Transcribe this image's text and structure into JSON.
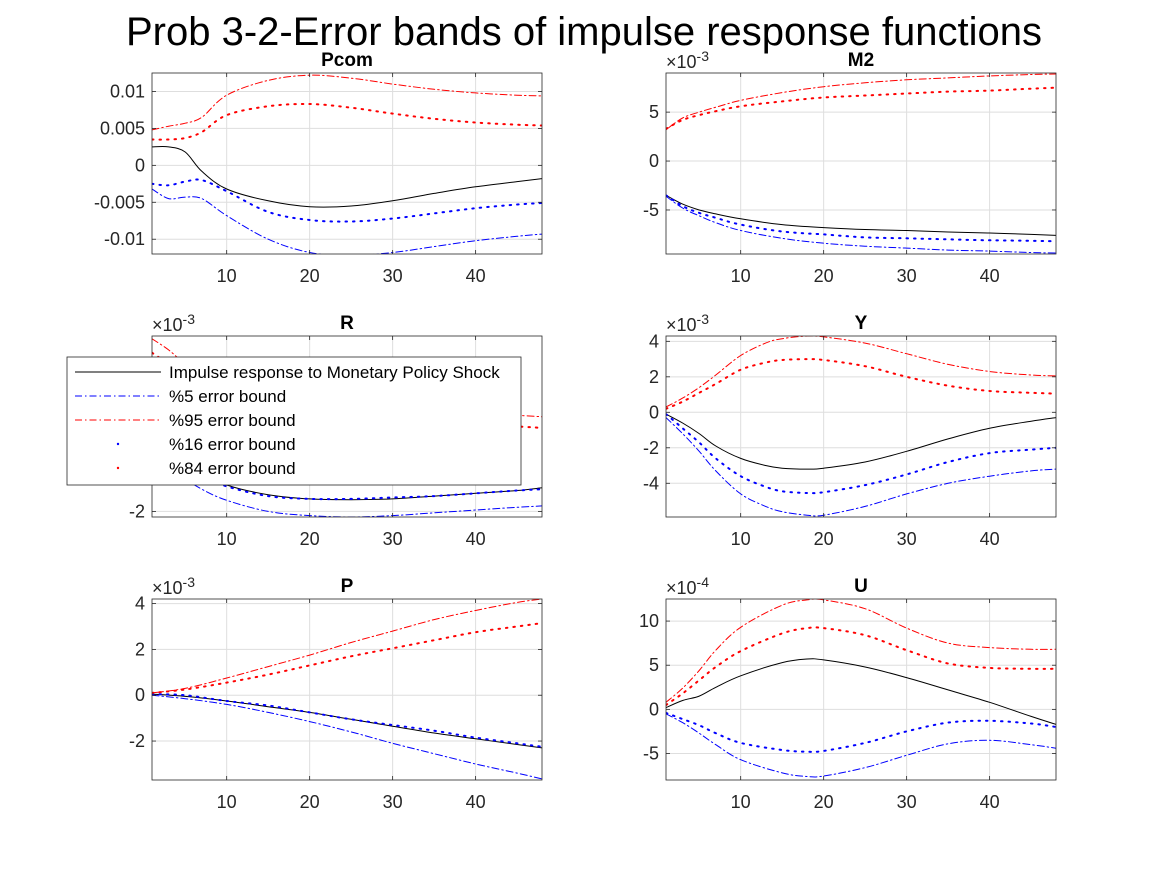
{
  "figure_title": "Prob 3-2-Error bands of impulse response functions",
  "legend": {
    "entries": [
      {
        "label": "Impulse response to Monetary Policy Shock",
        "style": "solid",
        "color": "#000000"
      },
      {
        "label": "%5 error bound",
        "style": "dashdot",
        "color": "#0000ff"
      },
      {
        "label": "%95 error bound",
        "style": "dashdot",
        "color": "#ff0000"
      },
      {
        "label": "%16 error bound",
        "style": "dotted",
        "color": "#0000ff"
      },
      {
        "label": "%84 error bound",
        "style": "dotted",
        "color": "#ff0000"
      }
    ]
  },
  "chart_data": [
    {
      "type": "line",
      "title": "Pcom",
      "exponent": null,
      "xlim": [
        1,
        48
      ],
      "ylim": [
        -0.012,
        0.0125
      ],
      "xticks": [
        10,
        20,
        30,
        40
      ],
      "xtick_labels": [
        "10",
        "20",
        "30",
        "40"
      ],
      "yticks": [
        -0.01,
        -0.005,
        0,
        0.005,
        0.01
      ],
      "ytick_labels": [
        "-0.01",
        "-0.005",
        "0",
        "0.005",
        "0.01"
      ],
      "x": [
        1,
        3,
        5,
        7,
        10,
        15,
        20,
        25,
        30,
        35,
        40,
        45,
        48
      ],
      "series": [
        {
          "name": "Impulse response to Monetary Policy Shock",
          "values": [
            0.0025,
            0.0025,
            0.0018,
            -0.0008,
            -0.0032,
            -0.0048,
            -0.0056,
            -0.0055,
            -0.0048,
            -0.0038,
            -0.0029,
            -0.0022,
            -0.0018
          ]
        },
        {
          "name": "%5 error bound",
          "values": [
            -0.0032,
            -0.0045,
            -0.0043,
            -0.0045,
            -0.0068,
            -0.01,
            -0.0118,
            -0.0122,
            -0.0118,
            -0.011,
            -0.0102,
            -0.0096,
            -0.0093
          ]
        },
        {
          "name": "%95 error bound",
          "values": [
            0.0048,
            0.0053,
            0.0057,
            0.0065,
            0.0095,
            0.0115,
            0.0122,
            0.0118,
            0.011,
            0.0103,
            0.0098,
            0.0095,
            0.0094
          ]
        },
        {
          "name": "%16 error bound",
          "values": [
            -0.0025,
            -0.0027,
            -0.0022,
            -0.002,
            -0.0035,
            -0.0063,
            -0.0074,
            -0.0076,
            -0.0072,
            -0.0065,
            -0.0058,
            -0.0053,
            -0.0051
          ]
        },
        {
          "name": "%84 error bound",
          "values": [
            0.0035,
            0.0035,
            0.0037,
            0.0045,
            0.0068,
            0.008,
            0.0083,
            0.0078,
            0.007,
            0.0063,
            0.0058,
            0.0055,
            0.0054
          ]
        }
      ]
    },
    {
      "type": "line",
      "title": "M2",
      "exponent": "-3",
      "xlim": [
        1,
        48
      ],
      "ylim": [
        -9.5,
        9.0
      ],
      "xticks": [
        10,
        20,
        30,
        40
      ],
      "xtick_labels": [
        "10",
        "20",
        "30",
        "40"
      ],
      "yticks": [
        -5,
        0,
        5
      ],
      "ytick_labels": [
        "-5",
        "0",
        "5"
      ],
      "x": [
        1,
        3,
        5,
        7,
        10,
        15,
        20,
        25,
        30,
        35,
        40,
        45,
        48
      ],
      "series": [
        {
          "name": "Impulse response to Monetary Policy Shock",
          "values": [
            -3.5,
            -4.4,
            -5.0,
            -5.4,
            -5.9,
            -6.5,
            -6.8,
            -7.0,
            -7.1,
            -7.25,
            -7.35,
            -7.5,
            -7.6
          ]
        },
        {
          "name": "%5 error bound",
          "values": [
            -3.6,
            -4.8,
            -5.6,
            -6.3,
            -7.1,
            -7.9,
            -8.4,
            -8.7,
            -8.9,
            -9.1,
            -9.2,
            -9.35,
            -9.4
          ]
        },
        {
          "name": "%95 error bound",
          "values": [
            3.2,
            4.4,
            5.0,
            5.5,
            6.2,
            7.0,
            7.6,
            8.0,
            8.3,
            8.5,
            8.7,
            8.85,
            8.9
          ]
        },
        {
          "name": "%16 error bound",
          "values": [
            -3.5,
            -4.6,
            -5.3,
            -5.8,
            -6.5,
            -7.2,
            -7.5,
            -7.8,
            -7.9,
            -8.0,
            -8.1,
            -8.15,
            -8.2
          ]
        },
        {
          "name": "%84 error bound",
          "values": [
            3.3,
            4.2,
            4.7,
            5.1,
            5.6,
            6.1,
            6.5,
            6.7,
            6.9,
            7.1,
            7.2,
            7.4,
            7.5
          ]
        }
      ]
    },
    {
      "type": "line",
      "title": "R",
      "exponent": "-3",
      "xlim": [
        1,
        48
      ],
      "ylim": [
        -2.2,
        4.3
      ],
      "xticks": [
        10,
        20,
        30,
        40
      ],
      "xtick_labels": [
        "10",
        "20",
        "30",
        "40"
      ],
      "yticks": [
        -2
      ],
      "ytick_labels": [
        "-2"
      ],
      "x": [
        1,
        3,
        5,
        7,
        10,
        15,
        20,
        25,
        30,
        35,
        40,
        45,
        48
      ],
      "series": [
        {
          "name": "Impulse response to Monetary Policy Shock",
          "values": [
            1.0,
            0.5,
            -0.2,
            -0.6,
            -1.05,
            -1.4,
            -1.55,
            -1.58,
            -1.55,
            -1.45,
            -1.35,
            -1.25,
            -1.15
          ]
        },
        {
          "name": "%5 error bound",
          "values": [
            0.4,
            -0.2,
            -0.8,
            -1.2,
            -1.6,
            -2.0,
            -2.15,
            -2.2,
            -2.15,
            -2.05,
            -1.95,
            -1.85,
            -1.8
          ]
        },
        {
          "name": "%95 error bound",
          "values": [
            4.2,
            3.8,
            3.3,
            3.0,
            2.5,
            2.1,
            1.9,
            1.75,
            1.65,
            1.55,
            1.5,
            1.45,
            1.4
          ]
        },
        {
          "name": "%16 error bound",
          "values": [
            0.8,
            0.3,
            -0.3,
            -0.7,
            -1.1,
            -1.45,
            -1.55,
            -1.55,
            -1.5,
            -1.45,
            -1.35,
            -1.25,
            -1.2
          ]
        },
        {
          "name": "%84 error bound",
          "values": [
            3.7,
            3.3,
            2.9,
            2.6,
            2.2,
            1.8,
            1.6,
            1.45,
            1.3,
            1.2,
            1.1,
            1.05,
            1.0
          ]
        }
      ]
    },
    {
      "type": "line",
      "title": "Y",
      "exponent": "-3",
      "xlim": [
        1,
        48
      ],
      "ylim": [
        -5.9,
        4.3
      ],
      "xticks": [
        10,
        20,
        30,
        40
      ],
      "xtick_labels": [
        "10",
        "20",
        "30",
        "40"
      ],
      "yticks": [
        -4,
        -2,
        0,
        2,
        4
      ],
      "ytick_labels": [
        "-4",
        "-2",
        "0",
        "2",
        "4"
      ],
      "x": [
        1,
        3,
        5,
        7,
        10,
        13,
        15,
        18,
        20,
        25,
        30,
        35,
        40,
        45,
        48
      ],
      "series": [
        {
          "name": "Impulse response to Monetary Policy Shock",
          "values": [
            -0.1,
            -0.6,
            -1.2,
            -1.9,
            -2.6,
            -3.0,
            -3.15,
            -3.2,
            -3.15,
            -2.8,
            -2.2,
            -1.5,
            -0.9,
            -0.5,
            -0.3
          ]
        },
        {
          "name": "%5 error bound",
          "values": [
            -0.3,
            -1.2,
            -2.2,
            -3.3,
            -4.6,
            -5.3,
            -5.6,
            -5.8,
            -5.8,
            -5.3,
            -4.6,
            -4.0,
            -3.6,
            -3.3,
            -3.2
          ]
        },
        {
          "name": "%95 error bound",
          "values": [
            0.3,
            0.8,
            1.4,
            2.1,
            3.2,
            3.9,
            4.15,
            4.3,
            4.25,
            3.9,
            3.3,
            2.7,
            2.3,
            2.1,
            2.05
          ]
        },
        {
          "name": "%16 error bound",
          "values": [
            -0.1,
            -0.9,
            -1.7,
            -2.6,
            -3.6,
            -4.2,
            -4.45,
            -4.55,
            -4.5,
            -4.1,
            -3.5,
            -2.8,
            -2.3,
            -2.1,
            -2.0
          ]
        },
        {
          "name": "%84 error bound",
          "values": [
            0.2,
            0.6,
            1.1,
            1.6,
            2.4,
            2.8,
            2.95,
            3.0,
            2.95,
            2.6,
            2.0,
            1.5,
            1.2,
            1.1,
            1.05
          ]
        }
      ]
    },
    {
      "type": "line",
      "title": "P",
      "exponent": "-3",
      "xlim": [
        1,
        48
      ],
      "ylim": [
        -3.7,
        4.2
      ],
      "xticks": [
        10,
        20,
        30,
        40
      ],
      "xtick_labels": [
        "10",
        "20",
        "30",
        "40"
      ],
      "yticks": [
        -2,
        0,
        2,
        4
      ],
      "ytick_labels": [
        "-2",
        "0",
        "2",
        "4"
      ],
      "x": [
        1,
        5,
        10,
        15,
        20,
        25,
        30,
        35,
        40,
        45,
        48
      ],
      "series": [
        {
          "name": "Impulse response to Monetary Policy Shock",
          "values": [
            0.05,
            -0.05,
            -0.25,
            -0.5,
            -0.75,
            -1.05,
            -1.35,
            -1.65,
            -1.9,
            -2.15,
            -2.3
          ]
        },
        {
          "name": "%5 error bound",
          "values": [
            0.0,
            -0.15,
            -0.4,
            -0.75,
            -1.15,
            -1.6,
            -2.1,
            -2.55,
            -3.0,
            -3.4,
            -3.65
          ]
        },
        {
          "name": "%95 error bound",
          "values": [
            0.1,
            0.3,
            0.75,
            1.25,
            1.75,
            2.3,
            2.8,
            3.3,
            3.7,
            4.05,
            4.2
          ]
        },
        {
          "name": "%16 error bound",
          "values": [
            0.05,
            0.0,
            -0.25,
            -0.45,
            -0.75,
            -1.05,
            -1.3,
            -1.55,
            -1.85,
            -2.1,
            -2.25
          ]
        },
        {
          "name": "%84 error bound",
          "values": [
            0.1,
            0.25,
            0.55,
            0.9,
            1.3,
            1.7,
            2.05,
            2.4,
            2.75,
            3.0,
            3.15
          ]
        }
      ]
    },
    {
      "type": "line",
      "title": "U",
      "exponent": "-4",
      "xlim": [
        1,
        48
      ],
      "ylim": [
        -8.0,
        12.5
      ],
      "xticks": [
        10,
        20,
        30,
        40
      ],
      "xtick_labels": [
        "10",
        "20",
        "30",
        "40"
      ],
      "yticks": [
        -5,
        0,
        5,
        10
      ],
      "ytick_labels": [
        "-5",
        "0",
        "5",
        "10"
      ],
      "x": [
        1,
        3,
        5,
        7,
        10,
        15,
        18,
        20,
        25,
        30,
        35,
        40,
        45,
        48
      ],
      "series": [
        {
          "name": "Impulse response to Monetary Policy Shock",
          "values": [
            0.2,
            1.0,
            1.5,
            2.5,
            3.8,
            5.3,
            5.7,
            5.6,
            4.8,
            3.6,
            2.2,
            0.8,
            -0.8,
            -1.7
          ]
        },
        {
          "name": "%5 error bound",
          "values": [
            -0.5,
            -1.5,
            -2.7,
            -4.0,
            -5.7,
            -7.2,
            -7.6,
            -7.55,
            -6.6,
            -5.2,
            -3.9,
            -3.5,
            -4.0,
            -4.4
          ]
        },
        {
          "name": "%95 error bound",
          "values": [
            0.8,
            2.4,
            4.4,
            6.7,
            9.3,
            11.8,
            12.4,
            12.4,
            11.4,
            9.2,
            7.5,
            7.0,
            6.8,
            6.8
          ]
        },
        {
          "name": "%16 error bound",
          "values": [
            -0.4,
            -1.1,
            -1.8,
            -2.7,
            -3.8,
            -4.6,
            -4.8,
            -4.7,
            -3.8,
            -2.5,
            -1.5,
            -1.3,
            -1.6,
            -2.0
          ]
        },
        {
          "name": "%84 error bound",
          "values": [
            0.5,
            1.8,
            3.3,
            4.8,
            6.6,
            8.6,
            9.2,
            9.2,
            8.4,
            6.7,
            5.2,
            4.7,
            4.6,
            4.6
          ]
        }
      ]
    }
  ],
  "styles": {
    "black": "#000000",
    "blue": "#0000ff",
    "red": "#ff0000",
    "grid": "#dedede",
    "axis": "#262626"
  }
}
